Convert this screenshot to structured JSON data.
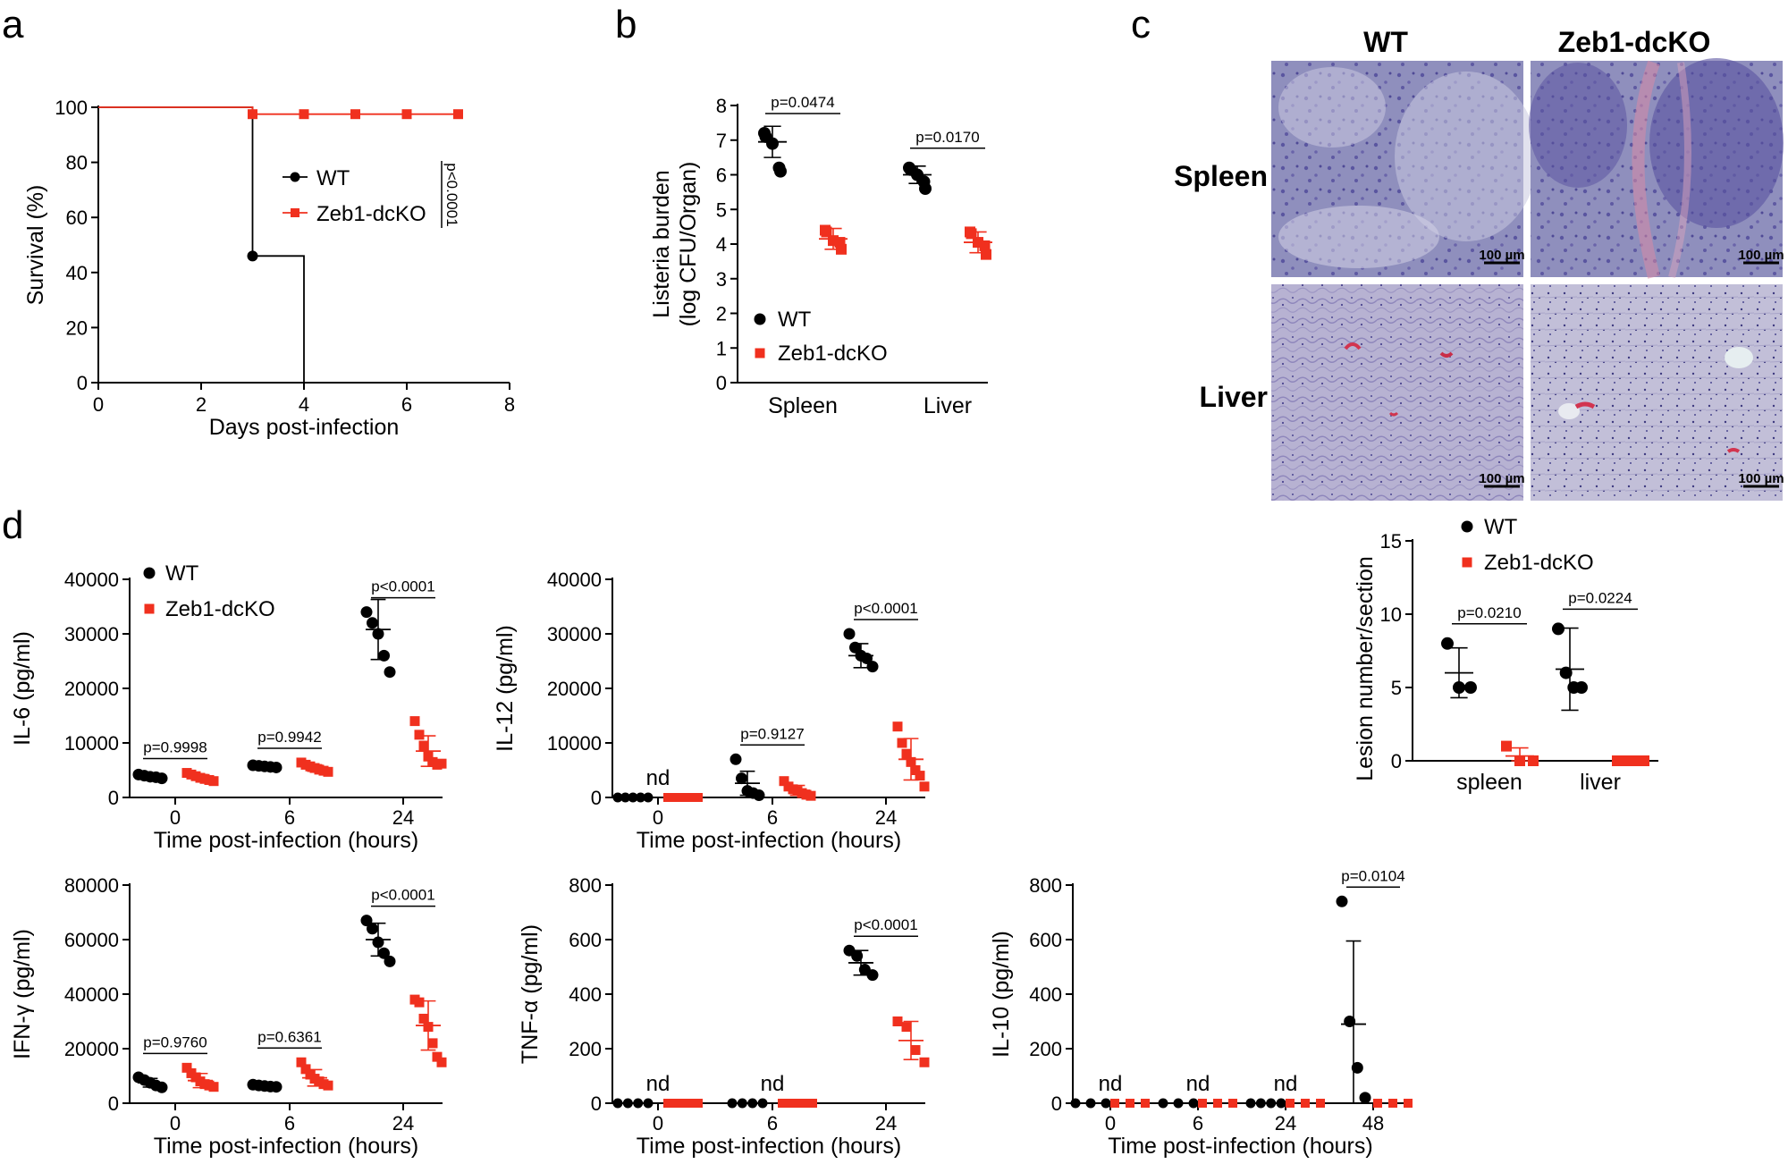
{
  "colors": {
    "wt": "#000000",
    "ko": "#f0301e"
  },
  "panel_a": {
    "letter": "a",
    "chart_data": {
      "type": "line",
      "ylabel": "Survival (%)",
      "xlabel": "Days post-infection",
      "xlim": [
        0,
        8
      ],
      "ylim": [
        0,
        100
      ],
      "x_ticks": [
        "0",
        "2",
        "4",
        "6",
        "8"
      ],
      "y_ticks": [
        "0",
        "20",
        "40",
        "60",
        "80",
        "100"
      ],
      "series": [
        {
          "name": "WT",
          "steps": [
            [
              0,
              100
            ],
            [
              3,
              100
            ],
            [
              3,
              46
            ],
            [
              4,
              46
            ],
            [
              4,
              0
            ]
          ],
          "markers": [
            [
              3,
              46
            ]
          ]
        },
        {
          "name": "Zeb1-dcKO",
          "steps": [
            [
              0,
              100
            ],
            [
              3,
              100
            ],
            [
              3,
              97.5
            ],
            [
              7,
              97.5
            ]
          ],
          "markers": [
            [
              3,
              97.5
            ],
            [
              4,
              97.5
            ],
            [
              5,
              97.5
            ],
            [
              6,
              97.5
            ],
            [
              7,
              97.5
            ]
          ]
        }
      ],
      "p_value": "p<0.0001"
    }
  },
  "panel_b": {
    "letter": "b",
    "chart_data": {
      "type": "scatter",
      "ylabel_line1": "Listeria burden",
      "ylabel_line2": "(log CFU/Organ)",
      "ylim": [
        0,
        8
      ],
      "y_ticks": [
        "0",
        "1",
        "2",
        "3",
        "4",
        "5",
        "6",
        "7",
        "8"
      ],
      "categories": [
        "Spleen",
        "Liver"
      ],
      "series": [
        {
          "name": "WT",
          "groups": [
            [
              7.2,
              7.1,
              6.9,
              6.2,
              6.1
            ],
            [
              6.2,
              6.15,
              6.0,
              5.8,
              5.6
            ]
          ],
          "mean": [
            6.95,
            6.0
          ],
          "sd": [
            0.45,
            0.25
          ]
        },
        {
          "name": "Zeb1-dcKO",
          "groups": [
            [
              4.4,
              4.35,
              4.1,
              4.05,
              3.85
            ],
            [
              4.35,
              4.3,
              4.05,
              3.95,
              3.7
            ]
          ],
          "mean": [
            4.15,
            4.05
          ],
          "sd": [
            0.3,
            0.3
          ]
        }
      ],
      "p_values": [
        "p=0.0474",
        "p=0.0170"
      ]
    }
  },
  "panel_c": {
    "letter": "c",
    "columns": [
      "WT",
      "Zeb1-dcKO"
    ],
    "rows": [
      "Spleen",
      "Liver"
    ],
    "scale_bar": "100 µm",
    "chart_data": {
      "type": "scatter",
      "ylabel": "Lesion number/section",
      "ylim": [
        0,
        15
      ],
      "y_ticks": [
        "0",
        "5",
        "10",
        "15"
      ],
      "categories": [
        "spleen",
        "liver"
      ],
      "series": [
        {
          "name": "WT",
          "groups": [
            [
              8,
              5,
              5
            ],
            [
              9,
              6,
              5,
              5
            ]
          ],
          "mean": [
            6,
            6.25
          ],
          "sd": [
            1.7,
            2.8
          ]
        },
        {
          "name": "Zeb1-dcKO",
          "groups": [
            [
              1,
              0,
              0
            ],
            [
              0,
              0,
              0,
              0
            ]
          ],
          "mean": [
            0.33,
            0
          ],
          "sd": [
            0.55,
            0
          ]
        }
      ],
      "p_values": [
        "p=0.0210",
        "p=0.0224"
      ]
    }
  },
  "panel_d": {
    "letter": "d",
    "xlabel": "Time post-infection (hours)",
    "legend": [
      "WT",
      "Zeb1-dcKO"
    ],
    "charts": [
      {
        "type": "scatter",
        "ylabel": "IL-6 (pg/ml)",
        "ylim": [
          0,
          40000
        ],
        "y_ticks": [
          "0",
          "10000",
          "20000",
          "30000",
          "40000"
        ],
        "categories": [
          "0",
          "6",
          "24"
        ],
        "wt": {
          "groups": [
            [
              4200,
              4000,
              3800,
              3700,
              3500
            ],
            [
              5900,
              5800,
              5700,
              5600,
              5500
            ],
            [
              34000,
              32000,
              30000,
              26000,
              23000
            ]
          ],
          "mean": [
            3850,
            5700,
            30800
          ],
          "sd": [
            300,
            150,
            5500
          ]
        },
        "ko": {
          "groups": [
            [
              4500,
              4200,
              3900,
              3600,
              3400,
              3200,
              3000
            ],
            [
              6400,
              6000,
              5700,
              5400,
              5100,
              4900,
              4700
            ],
            [
              14000,
              11500,
              9500,
              7500,
              6500,
              6000,
              6200
            ]
          ],
          "mean": [
            3700,
            5400,
            8500
          ],
          "sd": [
            500,
            600,
            2800
          ]
        },
        "p_values": [
          "p=0.9998",
          "p=0.9942",
          "p<0.0001"
        ],
        "nd": [
          false,
          false,
          false
        ]
      },
      {
        "type": "scatter",
        "ylabel": "IL-12 (pg/ml)",
        "ylim": [
          0,
          40000
        ],
        "y_ticks": [
          "0",
          "10000",
          "20000",
          "30000",
          "40000"
        ],
        "categories": [
          "0",
          "6",
          "24"
        ],
        "wt": {
          "groups": [
            [
              0,
              0,
              0,
              0,
              0
            ],
            [
              7000,
              3500,
              1200,
              800,
              400
            ],
            [
              30000,
              27500,
              26000,
              25500,
              24000
            ]
          ],
          "mean": [
            0,
            2600,
            26000
          ],
          "sd": [
            0,
            2200,
            2200
          ]
        },
        "ko": {
          "groups": [
            [
              0,
              0,
              0,
              0,
              0,
              0,
              0
            ],
            [
              3000,
              2000,
              1500,
              1200,
              800,
              500,
              300
            ],
            [
              13000,
              10000,
              8000,
              6500,
              5000,
              4000,
              2000
            ]
          ],
          "mean": [
            0,
            1300,
            7000
          ],
          "sd": [
            0,
            900,
            3800
          ]
        },
        "p_values": [
          "",
          "p=0.9127",
          "p<0.0001"
        ],
        "nd": [
          true,
          false,
          false
        ]
      },
      {
        "type": "scatter",
        "ylabel": "IFN-γ (pg/ml)",
        "ylim": [
          0,
          80000
        ],
        "y_ticks": [
          "0",
          "20000",
          "40000",
          "60000",
          "80000"
        ],
        "categories": [
          "0",
          "6",
          "24"
        ],
        "wt": {
          "groups": [
            [
              9500,
              8500,
              7500,
              6500,
              5800
            ],
            [
              6800,
              6500,
              6300,
              6100,
              6000
            ],
            [
              67000,
              64000,
              59000,
              55000,
              52000
            ]
          ],
          "mean": [
            7500,
            6300,
            60000
          ],
          "sd": [
            1600,
            300,
            6000
          ]
        },
        "ko": {
          "groups": [
            [
              13000,
              11000,
              9500,
              8000,
              7000,
              6500,
              6000
            ],
            [
              15000,
              12500,
              10500,
              9000,
              8000,
              7000,
              6500
            ],
            [
              38000,
              37000,
              31000,
              28000,
              22000,
              17000,
              15000
            ]
          ],
          "mean": [
            8300,
            9300,
            28500
          ],
          "sd": [
            2600,
            3000,
            9000
          ]
        },
        "p_values": [
          "p=0.9760",
          "p=0.6361",
          "p<0.0001"
        ],
        "nd": [
          false,
          false,
          false
        ]
      },
      {
        "type": "scatter",
        "ylabel": "TNF-α (pg/ml)",
        "ylim": [
          0,
          800
        ],
        "y_ticks": [
          "0",
          "200",
          "400",
          "600",
          "800"
        ],
        "categories": [
          "0",
          "6",
          "24"
        ],
        "wt": {
          "groups": [
            [
              0,
              0,
              0,
              0
            ],
            [
              0,
              0,
              0,
              0
            ],
            [
              560,
              540,
              490,
              470
            ]
          ],
          "mean": [
            0,
            0,
            515
          ],
          "sd": [
            0,
            0,
            45
          ]
        },
        "ko": {
          "groups": [
            [
              0,
              0,
              0,
              0,
              0
            ],
            [
              0,
              0,
              0,
              0,
              0
            ],
            [
              300,
              280,
              195,
              150
            ]
          ],
          "mean": [
            0,
            0,
            230
          ],
          "sd": [
            0,
            0,
            70
          ]
        },
        "p_values": [
          "",
          "",
          "p<0.0001"
        ],
        "nd": [
          true,
          true,
          false
        ]
      },
      {
        "type": "scatter",
        "ylabel": "IL-10 (pg/ml)",
        "ylim": [
          0,
          800
        ],
        "y_ticks": [
          "0",
          "200",
          "400",
          "600",
          "800"
        ],
        "categories": [
          "0",
          "6",
          "24",
          "48"
        ],
        "wt": {
          "groups": [
            [
              0,
              0,
              0
            ],
            [
              0,
              0,
              0
            ],
            [
              0,
              0,
              0,
              0
            ],
            [
              740,
              300,
              130,
              20
            ]
          ],
          "mean": [
            0,
            0,
            0,
            290
          ],
          "sd": [
            0,
            0,
            0,
            305
          ]
        },
        "ko": {
          "groups": [
            [
              0,
              0,
              0
            ],
            [
              0,
              0,
              0
            ],
            [
              0,
              0,
              0
            ],
            [
              0,
              0,
              0
            ]
          ],
          "mean": [
            0,
            0,
            0,
            0
          ],
          "sd": [
            0,
            0,
            0,
            0
          ]
        },
        "p_values": [
          "",
          "",
          "",
          "p=0.0104"
        ],
        "nd": [
          true,
          true,
          true,
          false
        ]
      }
    ],
    "nd_label": "nd"
  }
}
